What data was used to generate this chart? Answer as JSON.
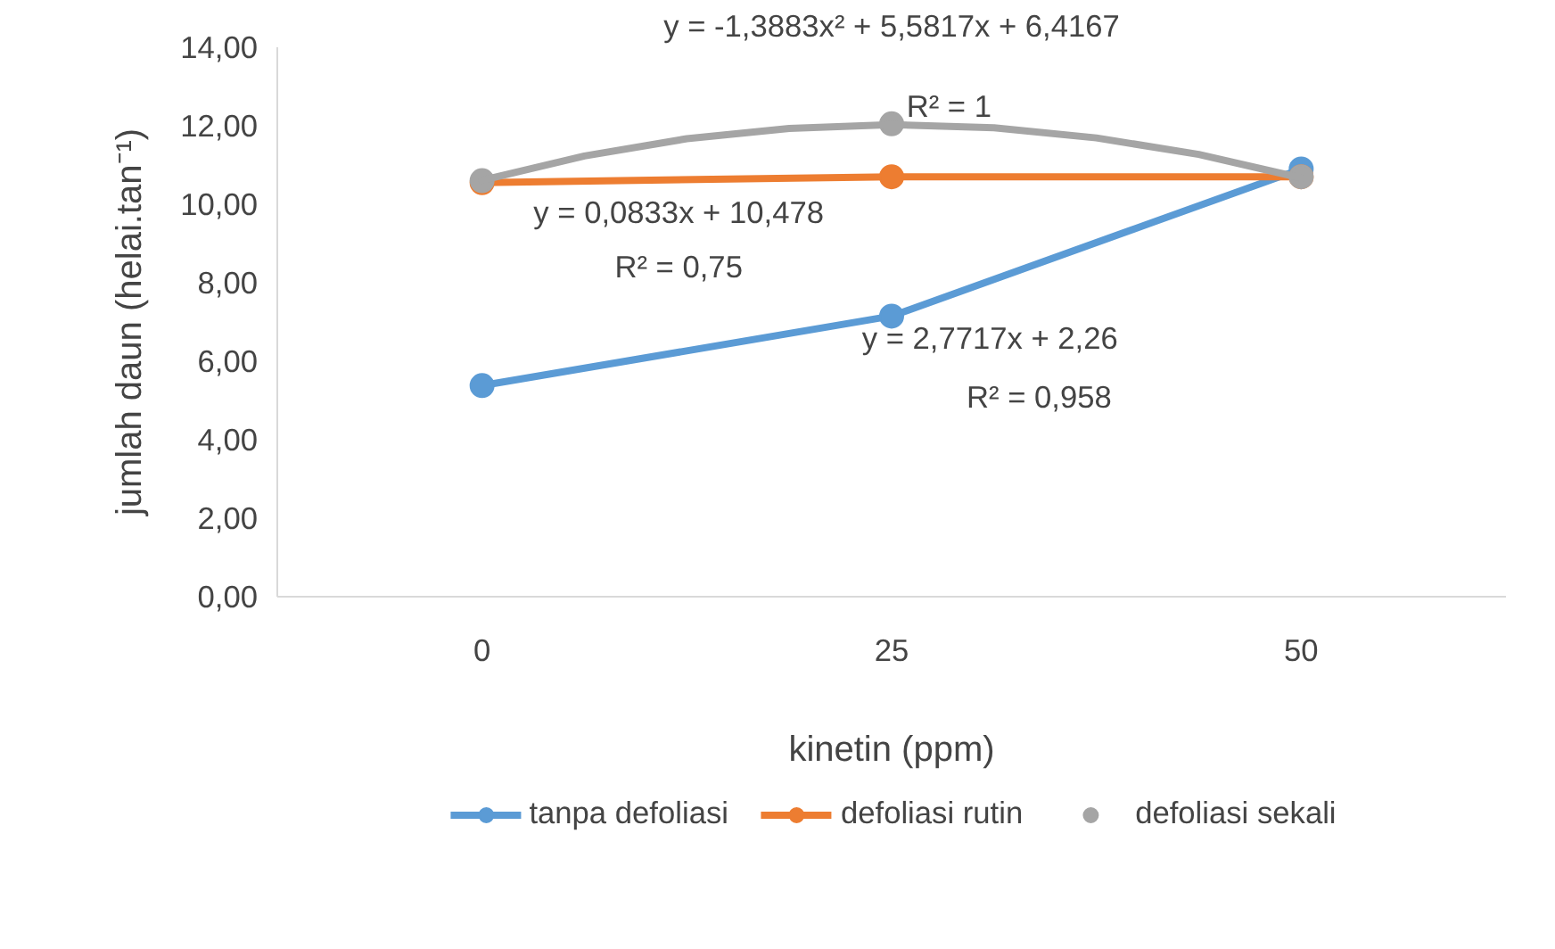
{
  "chart_data": {
    "type": "line",
    "xlabel": "kinetin (ppm)",
    "ylabel": "jumlah daun (helai.tan⁻¹)",
    "x": [
      0,
      25,
      50
    ],
    "xlim": [
      -12.5,
      62.5
    ],
    "xticks": [
      0,
      25,
      50
    ],
    "ylim": [
      0,
      14
    ],
    "yticks": [
      {
        "value": 0,
        "label": "0,00"
      },
      {
        "value": 2,
        "label": "2,00"
      },
      {
        "value": 4,
        "label": "4,00"
      },
      {
        "value": 6,
        "label": "6,00"
      },
      {
        "value": 8,
        "label": "8,00"
      },
      {
        "value": 10,
        "label": "10,00"
      },
      {
        "value": 12,
        "label": "12,00"
      },
      {
        "value": 14,
        "label": "14,00"
      }
    ],
    "series": [
      {
        "name": "tanpa defoliasi",
        "color": "#5b9bd5",
        "values": [
          5.38,
          7.15,
          10.9
        ]
      },
      {
        "name": "defoliasi rutin",
        "color": "#ed7d31",
        "values": [
          10.55,
          10.7,
          10.7
        ]
      },
      {
        "name": "defoliasi sekali",
        "type": "scatter",
        "color": "#a5a5a5",
        "values": [
          10.6,
          12.05,
          10.7
        ]
      },
      {
        "type": "line",
        "marker": "none",
        "color": "#a5a5a5",
        "x": [
          0,
          6.25,
          12.5,
          18.75,
          25,
          31.25,
          37.5,
          43.75,
          50
        ],
        "values": [
          10.61,
          11.23,
          11.67,
          11.93,
          12.03,
          11.95,
          11.69,
          11.27,
          10.67
        ]
      }
    ],
    "annotations": [
      "y = -1,3883x² + 5,5817x + 6,4167",
      "R² = 1",
      "y = 0,0833x + 10,478",
      "R² = 0,75",
      "y = 2,7717x + 2,26",
      "R² = 0,958"
    ],
    "marker": "circle",
    "grid": false,
    "legend": "bottom"
  }
}
